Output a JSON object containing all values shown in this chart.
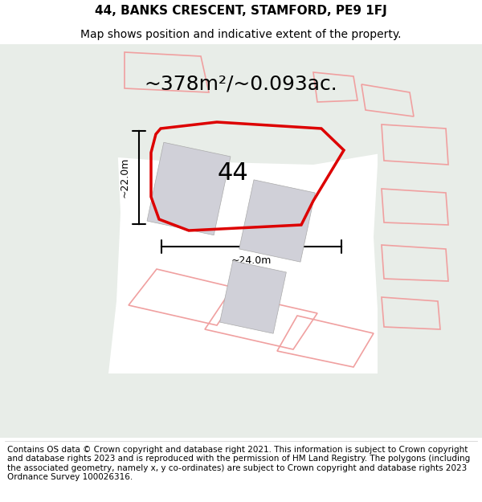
{
  "title_line1": "44, BANKS CRESCENT, STAMFORD, PE9 1FJ",
  "title_line2": "Map shows position and indicative extent of the property.",
  "area_text": "~378m²/~0.093ac.",
  "label_number": "44",
  "dim_height": "~22.0m",
  "dim_width": "~24.0m",
  "footer_text": "Contains OS data © Crown copyright and database right 2021. This information is subject to Crown copyright and database rights 2023 and is reproduced with the permission of HM Land Registry. The polygons (including the associated geometry, namely x, y co-ordinates) are subject to Crown copyright and database rights 2023 Ordnance Survey 100026316.",
  "map_bg": "#e8ede8",
  "white_area": "#ffffff",
  "red_plot": "#dd0000",
  "light_red": "#f0a0a0",
  "gray_building": "#d0d0d8",
  "title_fontsize": 11,
  "subtitle_fontsize": 10,
  "area_fontsize": 18,
  "number_fontsize": 22,
  "footer_fontsize": 7.5
}
